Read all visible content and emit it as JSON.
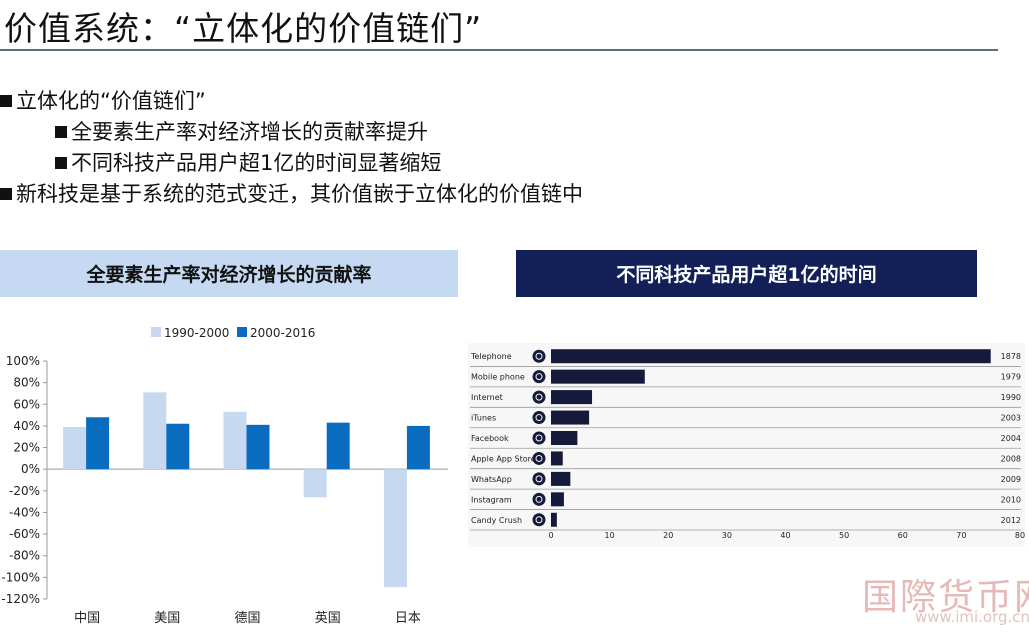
{
  "page": {
    "title": "价值系统：“立体化的价值链们”",
    "bullets": [
      {
        "level": 1,
        "text": "立体化的“价值链们”"
      },
      {
        "level": 2,
        "text": "全要素生产率对经济增长的贡献率提升"
      },
      {
        "level": 2,
        "text": "不同科技产品用户超1亿的时间显著缩短"
      },
      {
        "level": 1,
        "text": "新科技是基于系统的范式变迁，其价值嵌于立体化的价值链中"
      }
    ],
    "left_panel_title": "全要素生产率对经济增长的贡献率",
    "right_panel_title": "不同科技产品用户超1亿的时间",
    "watermark": "国際货币网",
    "watermark_url": "www.imi.org.cn"
  },
  "chart_data": [
    {
      "type": "bar",
      "categories": [
        "中国",
        "美国",
        "德国",
        "英国",
        "日本"
      ],
      "series": [
        {
          "name": "1990-2000",
          "color": "#c6d9f1",
          "values": [
            39,
            71,
            53,
            -26,
            -109
          ]
        },
        {
          "name": "2000-2016",
          "color": "#0a6cbf",
          "values": [
            48,
            42,
            41,
            43,
            40
          ]
        }
      ],
      "ylim": [
        -120,
        100
      ],
      "yticks": [
        "100%",
        "80%",
        "60%",
        "40%",
        "20%",
        "0%",
        "-20%",
        "-40%",
        "-60%",
        "-80%",
        "-100%",
        "-120%"
      ],
      "legend": "top"
    },
    {
      "type": "bar",
      "orientation": "horizontal",
      "categories": [
        "Telephone",
        "Mobile phone",
        "Internet",
        "iTunes",
        "Facebook",
        "Apple App Store",
        "WhatsApp",
        "Instagram",
        "Candy Crush"
      ],
      "icons": [
        "telephone-icon",
        "mobile-phone-icon",
        "globe-icon",
        "music-note-icon",
        "facebook-icon",
        "app-store-icon",
        "whatsapp-icon",
        "instagram-icon",
        "candy-crush-icon"
      ],
      "values": [
        75,
        16,
        7,
        6.5,
        4.5,
        2,
        3.3,
        2.2,
        1
      ],
      "years": [
        "1878",
        "1979",
        "1990",
        "2003",
        "2004",
        "2008",
        "2009",
        "2010",
        "2012"
      ],
      "xticks": [
        "0",
        "10",
        "20",
        "30",
        "40",
        "50",
        "60",
        "70",
        "80"
      ],
      "xlim": [
        0,
        80
      ],
      "bar_color": "#161a3a"
    }
  ]
}
